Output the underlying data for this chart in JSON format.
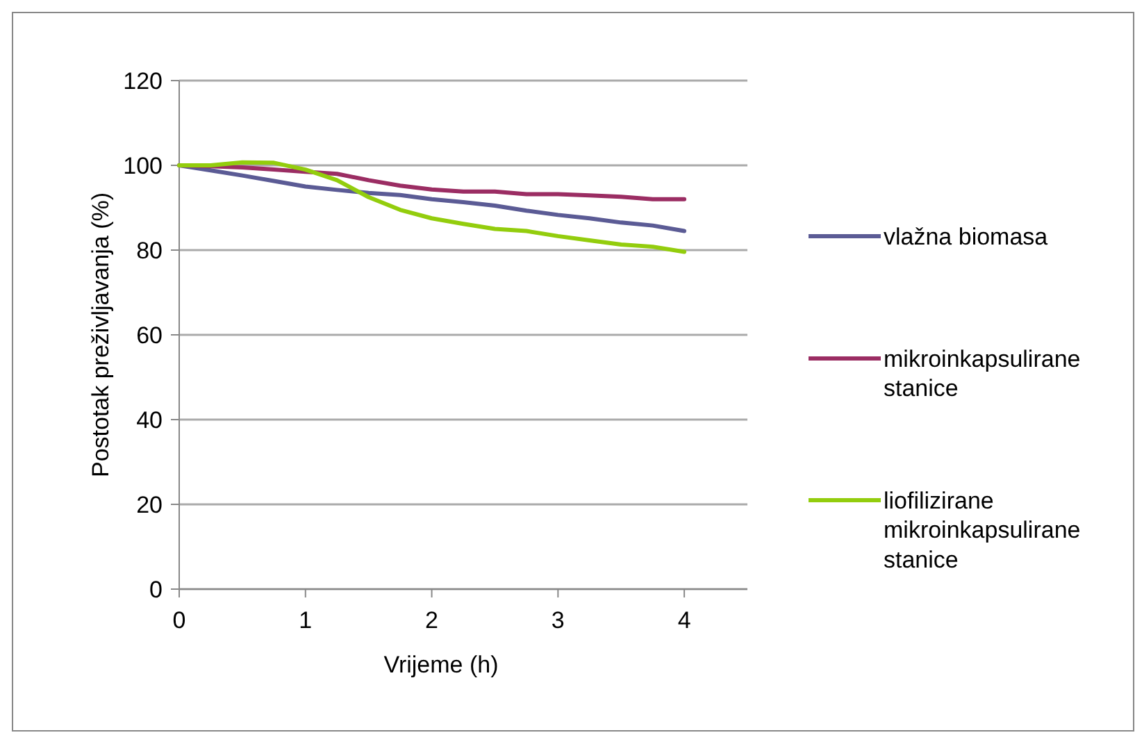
{
  "chart_data": {
    "type": "line",
    "xlabel": "Vrijeme (h)",
    "ylabel": "Postotak preživljavanja (%)",
    "x": [
      0,
      0.25,
      0.5,
      0.75,
      1,
      1.25,
      1.5,
      1.75,
      2,
      2.25,
      2.5,
      2.75,
      3,
      3.25,
      3.5,
      3.75,
      4
    ],
    "series": [
      {
        "name": "vlažna biomasa",
        "color": "#5b5b95",
        "values": [
          100,
          98.8,
          97.6,
          96.3,
          95,
          94.2,
          93.5,
          93,
          92,
          91.3,
          90.5,
          89.3,
          88.3,
          87.5,
          86.5,
          85.8,
          84.5
        ]
      },
      {
        "name": "mikroinkapsulirane stanice",
        "color": "#9b2d63",
        "values": [
          100,
          99.8,
          99.5,
          99,
          98.5,
          98,
          96.5,
          95.2,
          94.3,
          93.8,
          93.8,
          93.2,
          93.2,
          92.9,
          92.6,
          92,
          92
        ]
      },
      {
        "name": "liofilizirane mikroinkapsulirane stanice",
        "color": "#93cd0d",
        "values": [
          100,
          100,
          100.7,
          100.6,
          99,
          96.5,
          92.5,
          89.5,
          87.5,
          86.2,
          85,
          84.5,
          83.3,
          82.3,
          81.3,
          80.8,
          79.6
        ]
      }
    ],
    "xlim": [
      0,
      4.5
    ],
    "xticks": [
      0,
      1,
      2,
      3,
      4
    ],
    "ylim": [
      0,
      120
    ],
    "yticks": [
      0,
      20,
      40,
      60,
      80,
      100,
      120
    ],
    "grid": "y",
    "legend": "right",
    "marker": "none",
    "line_style": "solid"
  }
}
